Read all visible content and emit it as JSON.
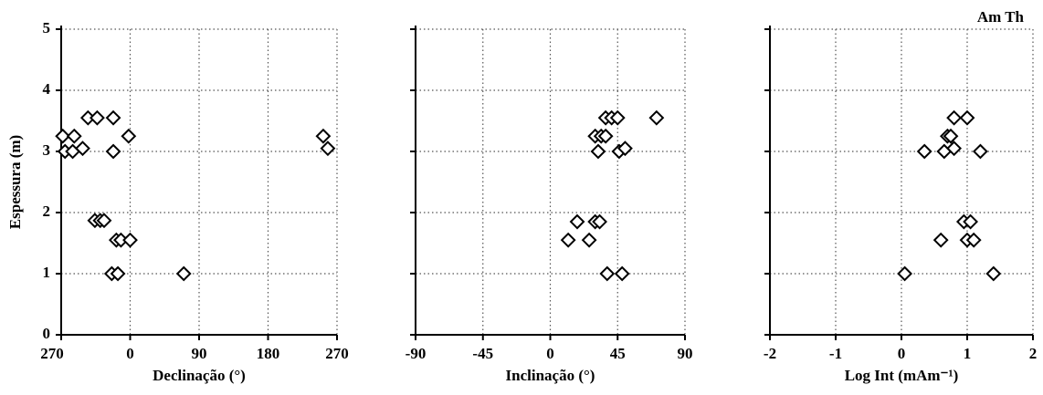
{
  "chart_data": [
    {
      "type": "scatter",
      "y_label": "Espessura (m)",
      "x_label": "Declinação (°)",
      "xlim": [
        -90,
        270
      ],
      "xticks": [
        {
          "value": -90,
          "label": "270"
        },
        0,
        90,
        180,
        270
      ],
      "ylim": [
        0,
        5
      ],
      "yticks": [
        0,
        1,
        2,
        3,
        4,
        5
      ],
      "grid": true,
      "color": "#000000",
      "x": [
        -88,
        -73,
        -85,
        -75,
        -62,
        -55,
        -43,
        -22,
        -2,
        -22,
        -46,
        -39,
        -34,
        -18,
        -12,
        0,
        -24,
        -16,
        70,
        252,
        258
      ],
      "values": [
        3.25,
        3.25,
        3.0,
        3.0,
        3.05,
        3.55,
        3.55,
        3.55,
        3.25,
        3.0,
        1.87,
        1.87,
        1.87,
        1.55,
        1.55,
        1.55,
        1.0,
        1.0,
        1.0,
        3.25,
        3.05
      ]
    },
    {
      "type": "scatter",
      "x_label": "Inclinação (°)",
      "xlim": [
        -90,
        90
      ],
      "xticks": [
        -90,
        -45,
        0,
        45,
        90
      ],
      "ylim": [
        0,
        5
      ],
      "yticks": [
        0,
        1,
        2,
        3,
        4,
        5
      ],
      "grid": true,
      "color": "#000000",
      "x": [
        37,
        41,
        45,
        71,
        30,
        34,
        37,
        32,
        46,
        50,
        18,
        30,
        33,
        12,
        26,
        38,
        48
      ],
      "values": [
        3.55,
        3.55,
        3.55,
        3.55,
        3.25,
        3.25,
        3.25,
        3.0,
        3.0,
        3.05,
        1.85,
        1.85,
        1.85,
        1.55,
        1.55,
        1.0,
        1.0
      ]
    },
    {
      "type": "scatter",
      "title": "Am Th",
      "x_label": "Log Int (mAm⁻¹)",
      "xlim": [
        -2,
        2
      ],
      "xticks": [
        -2,
        -1,
        0,
        1,
        2
      ],
      "ylim": [
        0,
        5
      ],
      "yticks": [
        0,
        1,
        2,
        3,
        4,
        5
      ],
      "grid": true,
      "color": "#000000",
      "x": [
        0.8,
        1.0,
        0.7,
        0.75,
        0.35,
        0.65,
        0.8,
        1.2,
        0.95,
        1.05,
        0.6,
        1.0,
        1.1,
        0.05,
        1.4
      ],
      "values": [
        3.55,
        3.55,
        3.25,
        3.25,
        3.0,
        3.0,
        3.05,
        3.0,
        1.85,
        1.85,
        1.55,
        1.55,
        1.55,
        1.0,
        1.0
      ]
    }
  ]
}
